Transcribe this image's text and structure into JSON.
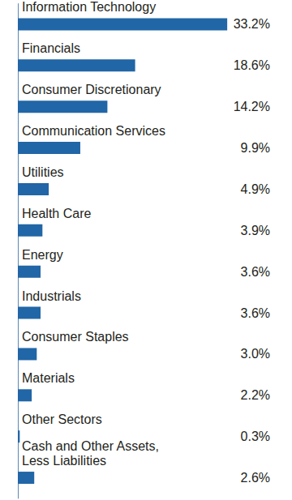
{
  "chart_data": {
    "type": "bar",
    "orientation": "horizontal",
    "categories": [
      "Information Technology",
      "Financials",
      "Consumer Discretionary",
      "Communication Services",
      "Utilities",
      "Health Care",
      "Energy",
      "Industrials",
      "Consumer Staples",
      "Materials",
      "Other Sectors",
      "Cash and Other Assets, Less Liabilities"
    ],
    "values": [
      33.2,
      18.6,
      14.2,
      9.9,
      4.9,
      3.9,
      3.6,
      3.6,
      3.0,
      2.2,
      0.3,
      2.6
    ],
    "value_labels": [
      "33.2%",
      "18.6%",
      "14.2%",
      "9.9%",
      "4.9%",
      "3.9%",
      "3.6%",
      "3.6%",
      "3.0%",
      "2.2%",
      "0.3%",
      "2.6%"
    ],
    "color": "#2166a6",
    "xlim": [
      0,
      40
    ],
    "grid": false,
    "data_labels": true,
    "tick_labels": false
  }
}
